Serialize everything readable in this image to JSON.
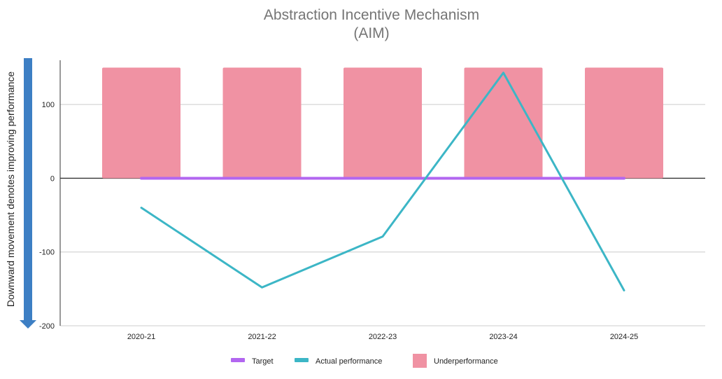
{
  "chart_data": {
    "type": "bar",
    "title_lines": [
      "Abstraction Incentive Mechanism",
      "(AIM)"
    ],
    "side_label": "Downward movement denotes improving performance",
    "categories": [
      "2020-21",
      "2021-22",
      "2022-23",
      "2023-24",
      "2024-25"
    ],
    "ylim": [
      -200,
      160
    ],
    "yticks": [
      -200,
      -100,
      0,
      100
    ],
    "ytick_labels": [
      "-200",
      "-100",
      "0",
      "100"
    ],
    "grid": true,
    "legend_position": "bottom",
    "series": [
      {
        "name": "Target",
        "type": "line",
        "color": "#b266f0",
        "values": [
          0,
          0,
          0,
          0,
          0
        ]
      },
      {
        "name": "Actual performance",
        "type": "line",
        "color": "#3cb6c6",
        "values": [
          -40,
          -148,
          -79,
          143,
          -152
        ]
      },
      {
        "name": "Underperformance",
        "type": "bar",
        "color": "#f092a3",
        "values": [
          150,
          150,
          150,
          150,
          150
        ]
      }
    ],
    "legend": [
      "Target",
      "Actual performance",
      "Underperformance"
    ],
    "arrow_color": "#3d7fc4"
  }
}
